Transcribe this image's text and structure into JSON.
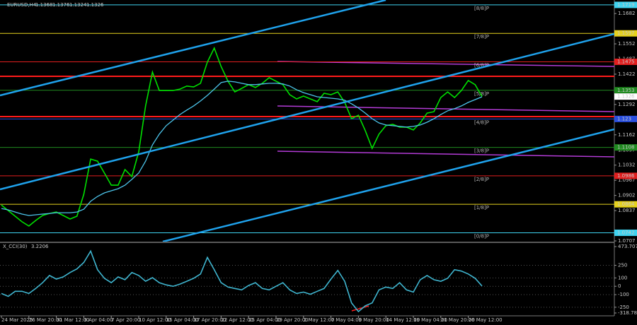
{
  "chart_data": [
    {
      "type": "line",
      "title": "EURUSD,H4",
      "ohlc": [
        1.1368,
        1.1376,
        1.1324,
        1.1326
      ],
      "categories": [
        "24 Mar 2025",
        null,
        null,
        null,
        "26 Mar 20:00",
        null,
        null,
        null,
        "31 Mar 12:00",
        null,
        null,
        null,
        "3 Apr 04:00",
        null,
        null,
        null,
        "7 Apr 20:00",
        null,
        null,
        null,
        "10 Apr 12:00",
        null,
        null,
        null,
        "15 Apr 04:00",
        null,
        null,
        null,
        "17 Apr 20:00",
        null,
        null,
        null,
        "22 Apr 12:00",
        null,
        null,
        null,
        "25 Apr 04:00",
        null,
        null,
        null,
        "29 Apr 20:00",
        null,
        null,
        null,
        "2 May 12:00",
        null,
        null,
        null,
        "7 May 04:00",
        null,
        null,
        null,
        "9 May 20:00",
        null,
        null,
        null,
        "14 May 12:00",
        null,
        null,
        null,
        "19 May 04:00",
        null,
        null,
        null,
        "21 May 20:00",
        null,
        null,
        null,
        "26 May 12:00",
        null,
        null
      ],
      "series": [
        {
          "color": "#00e000",
          "values": [
            1.0861,
            1.0837,
            1.0813,
            1.0789,
            1.0771,
            1.0795,
            1.0816,
            1.0825,
            1.0831,
            1.0816,
            1.0801,
            1.0813,
            1.0907,
            1.1058,
            1.1049,
            1.0998,
            1.0946,
            1.0946,
            1.1013,
            1.0983,
            1.1089,
            1.1286,
            1.1431,
            1.1352,
            1.1352,
            1.1352,
            1.1358,
            1.1371,
            1.1367,
            1.1383,
            1.1474,
            1.1534,
            1.1455,
            1.1392,
            1.1346,
            1.1361,
            1.1377,
            1.1365,
            1.1383,
            1.1407,
            1.1392,
            1.1377,
            1.1334,
            1.1316,
            1.1328,
            1.1316,
            1.1304,
            1.134,
            1.1334,
            1.1346,
            1.1301,
            1.1231,
            1.1246,
            1.118,
            1.1104,
            1.1165,
            1.1201,
            1.1207,
            1.1195,
            1.1195,
            1.1183,
            1.1213,
            1.1255,
            1.1261,
            1.1322,
            1.1346,
            1.1322,
            1.1352,
            1.1395,
            1.1377,
            1.1326
          ]
        },
        {
          "color": "#4cc4ea",
          "values": [
            1.0846,
            1.084,
            1.0831,
            1.0822,
            1.0816,
            1.0819,
            1.0822,
            1.0825,
            1.0828,
            1.0828,
            1.0828,
            1.0831,
            1.0843,
            1.0877,
            1.0898,
            1.0913,
            1.0922,
            1.0931,
            1.0946,
            1.0971,
            1.0998,
            1.1049,
            1.1119,
            1.1165,
            1.1201,
            1.1225,
            1.1249,
            1.1268,
            1.1286,
            1.1307,
            1.1331,
            1.1358,
            1.1386,
            1.1392,
            1.1389,
            1.1383,
            1.1377,
            1.1377,
            1.138,
            1.1383,
            1.1383,
            1.138,
            1.1371,
            1.1355,
            1.1343,
            1.1334,
            1.1325,
            1.1322,
            1.1319,
            1.1316,
            1.131,
            1.1295,
            1.1277,
            1.1255,
            1.1231,
            1.1213,
            1.1204,
            1.1201,
            1.1198,
            1.1195,
            1.1198,
            1.1204,
            1.1216,
            1.1231,
            1.1249,
            1.1265,
            1.1274,
            1.1286,
            1.1301,
            1.1313,
            1.1325
          ]
        }
      ],
      "ylim": [
        1.0704,
        1.174
      ],
      "yticks": [
        1.1682,
        1.1552,
        1.1487,
        1.1422,
        1.1357,
        1.1292,
        1.1162,
        1.1097,
        1.1032,
        1.0967,
        1.0902,
        1.0837,
        1.0707
      ],
      "levels": [
        {
          "name": "[8/8]P",
          "value": 1.1719,
          "color": "#3fd3f0"
        },
        {
          "name": "[7/8]P",
          "value": 1.1597,
          "color": "#e6d21e"
        },
        {
          "name": "[6/8]P",
          "value": 1.1475,
          "color": "#e01e1e"
        },
        {
          "name": "[5/8]P",
          "value": 1.1353,
          "color": "#1f8a1f"
        },
        {
          "name": "[4/8]P",
          "value": 1.123,
          "color": "#2a4fe0"
        },
        {
          "name": "[3/8]P",
          "value": 1.1108,
          "color": "#1f8a1f"
        },
        {
          "name": "[2/8]P",
          "value": 1.0986,
          "color": "#e01e1e"
        },
        {
          "name": "[1/8]P",
          "value": 1.0864,
          "color": "#e6d21e"
        },
        {
          "name": "[0/8]P",
          "value": 1.0742,
          "color": "#3fd3f0"
        }
      ],
      "sr_levels": [
        1.1413,
        1.124
      ],
      "sr_color": "#ff1a1a"
    },
    {
      "type": "line",
      "title": "X_CCI(30)",
      "series": [
        {
          "color": "#3fb5cf",
          "values": [
            -86,
            -121,
            -60,
            -60,
            -86,
            -26,
            43,
            129,
            86,
            112,
            164,
            207,
            284,
            420,
            198,
            95,
            43,
            112,
            78,
            164,
            129,
            60,
            103,
            43,
            17,
            0,
            26,
            60,
            95,
            147,
            345,
            198,
            43,
            -9,
            -26,
            -43,
            9,
            43,
            -26,
            -43,
            0,
            43,
            -43,
            -86,
            -69,
            -95,
            -60,
            -26,
            86,
            190,
            60,
            -198,
            -302,
            -233,
            -198,
            -43,
            -9,
            -26,
            43,
            -43,
            -69,
            78,
            129,
            78,
            60,
            95,
            198,
            181,
            147,
            95,
            3.2206
          ]
        }
      ],
      "ylim": [
        -318.786,
        473.707
      ],
      "yticks": [
        473.707,
        250,
        100,
        0,
        -100,
        -250,
        -318.786
      ],
      "grid": true
    }
  ]
}
